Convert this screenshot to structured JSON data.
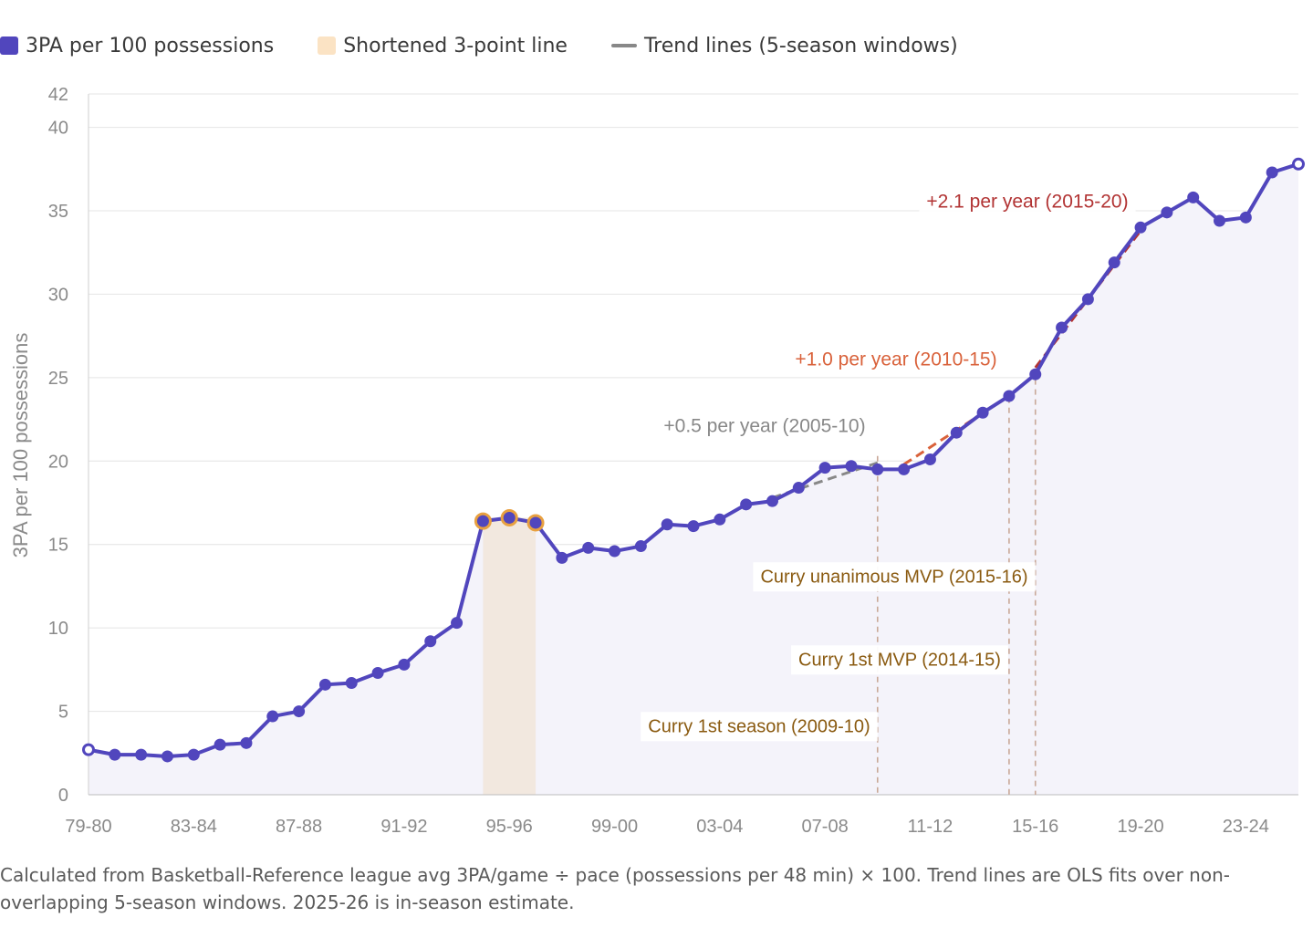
{
  "legend": {
    "series_label": "3PA per 100 possessions",
    "band_label": "Shortened 3-point line",
    "trend_label": "Trend lines (5-season windows)"
  },
  "colors": {
    "series": "#5146bd",
    "fill": "#f4f3fa",
    "band": "#f1e5d9",
    "band_marker": "#e8a040",
    "trend_gray": "#888888",
    "trend_orange": "#d9623b",
    "trend_red": "#b23434",
    "annotation_brown": "#8a5a10",
    "grid": "#e4e4e4",
    "axis_text": "#8a8a8a"
  },
  "caption": "Calculated from Basketball-Reference league avg 3PA/game ÷ pace (possessions per 48 min) × 100. Trend lines are OLS fits over non-overlapping 5-season windows. 2025-26 is in-season estimate.",
  "chart_data": {
    "type": "line",
    "title": "",
    "xlabel": "",
    "ylabel": "3PA per 100 possessions",
    "ylim": [
      0,
      42
    ],
    "yticks": [
      0,
      5,
      10,
      15,
      20,
      25,
      30,
      35,
      40,
      42
    ],
    "grid": true,
    "categories": [
      "79-80",
      "80-81",
      "81-82",
      "82-83",
      "83-84",
      "84-85",
      "85-86",
      "86-87",
      "87-88",
      "88-89",
      "89-90",
      "90-91",
      "91-92",
      "92-93",
      "93-94",
      "94-95",
      "95-96",
      "96-97",
      "97-98",
      "98-99",
      "99-00",
      "00-01",
      "01-02",
      "02-03",
      "03-04",
      "04-05",
      "05-06",
      "06-07",
      "07-08",
      "08-09",
      "09-10",
      "10-11",
      "11-12",
      "12-13",
      "13-14",
      "14-15",
      "15-16",
      "16-17",
      "17-18",
      "18-19",
      "19-20",
      "20-21",
      "21-22",
      "22-23",
      "23-24",
      "24-25",
      "25-26"
    ],
    "xtick_labels": [
      "79-80",
      "83-84",
      "87-88",
      "91-92",
      "95-96",
      "99-00",
      "03-04",
      "07-08",
      "11-12",
      "15-16",
      "19-20",
      "23-24"
    ],
    "series": [
      {
        "name": "3PA per 100 possessions",
        "values": [
          2.7,
          2.4,
          2.4,
          2.3,
          2.4,
          3.0,
          3.1,
          4.7,
          5.0,
          6.6,
          6.7,
          7.3,
          7.8,
          9.2,
          10.3,
          16.4,
          16.6,
          16.3,
          14.2,
          14.8,
          14.6,
          14.9,
          16.2,
          16.1,
          16.5,
          17.4,
          17.6,
          18.4,
          19.6,
          19.7,
          19.5,
          19.5,
          20.1,
          21.7,
          22.9,
          23.9,
          25.2,
          28.0,
          29.7,
          31.9,
          34.0,
          34.9,
          35.8,
          34.4,
          34.6,
          37.3,
          37.8
        ]
      }
    ],
    "shortened_line_seasons": [
      "94-95",
      "95-96",
      "96-97"
    ],
    "trend_lines": [
      {
        "label": "+0.5 per year (2005-10)",
        "from": "05-06",
        "to": "09-10",
        "y_start": 17.8,
        "y_end": 19.9,
        "color": "trend_gray"
      },
      {
        "label": "+1.0 per year (2010-15)",
        "from": "10-11",
        "to": "14-15",
        "y_start": 19.8,
        "y_end": 23.9,
        "color": "trend_orange"
      },
      {
        "label": "+2.1 per year (2015-20)",
        "from": "15-16",
        "to": "19-20",
        "y_start": 25.6,
        "y_end": 33.8,
        "color": "trend_red"
      }
    ],
    "events": [
      {
        "label": "Curry 1st season (2009-10)",
        "season": "09-10"
      },
      {
        "label": "Curry 1st MVP (2014-15)",
        "season": "14-15"
      },
      {
        "label": "Curry unanimous MVP (2015-16)",
        "season": "15-16"
      }
    ]
  }
}
